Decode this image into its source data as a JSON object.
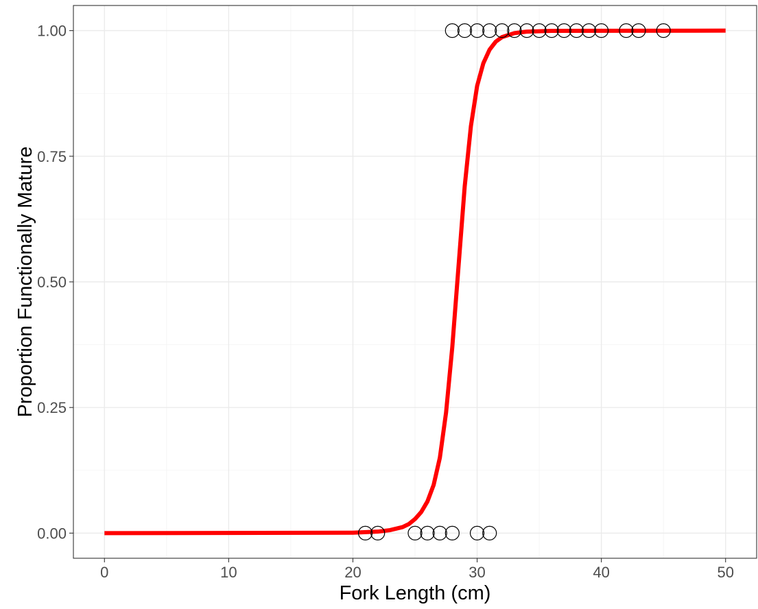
{
  "chart_data": {
    "type": "scatter",
    "title": "",
    "xlabel": "Fork Length (cm)",
    "ylabel": "Proportion Functionally Mature",
    "xlim": [
      -2.5,
      52.5
    ],
    "ylim": [
      -0.05,
      1.05
    ],
    "x_ticks": [
      0,
      10,
      20,
      30,
      40,
      50
    ],
    "x_tick_labels": [
      "0",
      "10",
      "20",
      "30",
      "40",
      "50"
    ],
    "y_ticks": [
      0,
      0.25,
      0.5,
      0.75,
      1
    ],
    "y_tick_labels": [
      "0.00",
      "0.25",
      "0.50",
      "0.75",
      "1.00"
    ],
    "grid": true,
    "legend": "none",
    "series": [
      {
        "kind": "points",
        "marker": "open-circle",
        "color": "#000000",
        "points": [
          {
            "x": 21,
            "y": 0
          },
          {
            "x": 22,
            "y": 0
          },
          {
            "x": 25,
            "y": 0
          },
          {
            "x": 26,
            "y": 0
          },
          {
            "x": 27,
            "y": 0
          },
          {
            "x": 28,
            "y": 0
          },
          {
            "x": 30,
            "y": 0
          },
          {
            "x": 31,
            "y": 0
          },
          {
            "x": 28,
            "y": 1
          },
          {
            "x": 29,
            "y": 1
          },
          {
            "x": 30,
            "y": 1
          },
          {
            "x": 31,
            "y": 1
          },
          {
            "x": 32,
            "y": 1
          },
          {
            "x": 33,
            "y": 1
          },
          {
            "x": 34,
            "y": 1
          },
          {
            "x": 35,
            "y": 1
          },
          {
            "x": 36,
            "y": 1
          },
          {
            "x": 37,
            "y": 1
          },
          {
            "x": 38,
            "y": 1
          },
          {
            "x": 39,
            "y": 1
          },
          {
            "x": 40,
            "y": 1
          },
          {
            "x": 42,
            "y": 1
          },
          {
            "x": 43,
            "y": 1
          },
          {
            "x": 45,
            "y": 1
          }
        ]
      },
      {
        "kind": "fitted-curve",
        "color": "#ff0000",
        "x": [
          0,
          20,
          22,
          23,
          24,
          24.5,
          25,
          25.5,
          26,
          26.5,
          27,
          27.5,
          28,
          28.5,
          29,
          29.5,
          30,
          30.5,
          31,
          31.5,
          32,
          33,
          34,
          36,
          50
        ],
        "y": [
          0,
          0.0008,
          0.003,
          0.006,
          0.012,
          0.018,
          0.028,
          0.042,
          0.063,
          0.096,
          0.15,
          0.24,
          0.37,
          0.53,
          0.69,
          0.81,
          0.89,
          0.935,
          0.962,
          0.978,
          0.987,
          0.995,
          0.998,
          0.9995,
          1
        ]
      }
    ]
  }
}
